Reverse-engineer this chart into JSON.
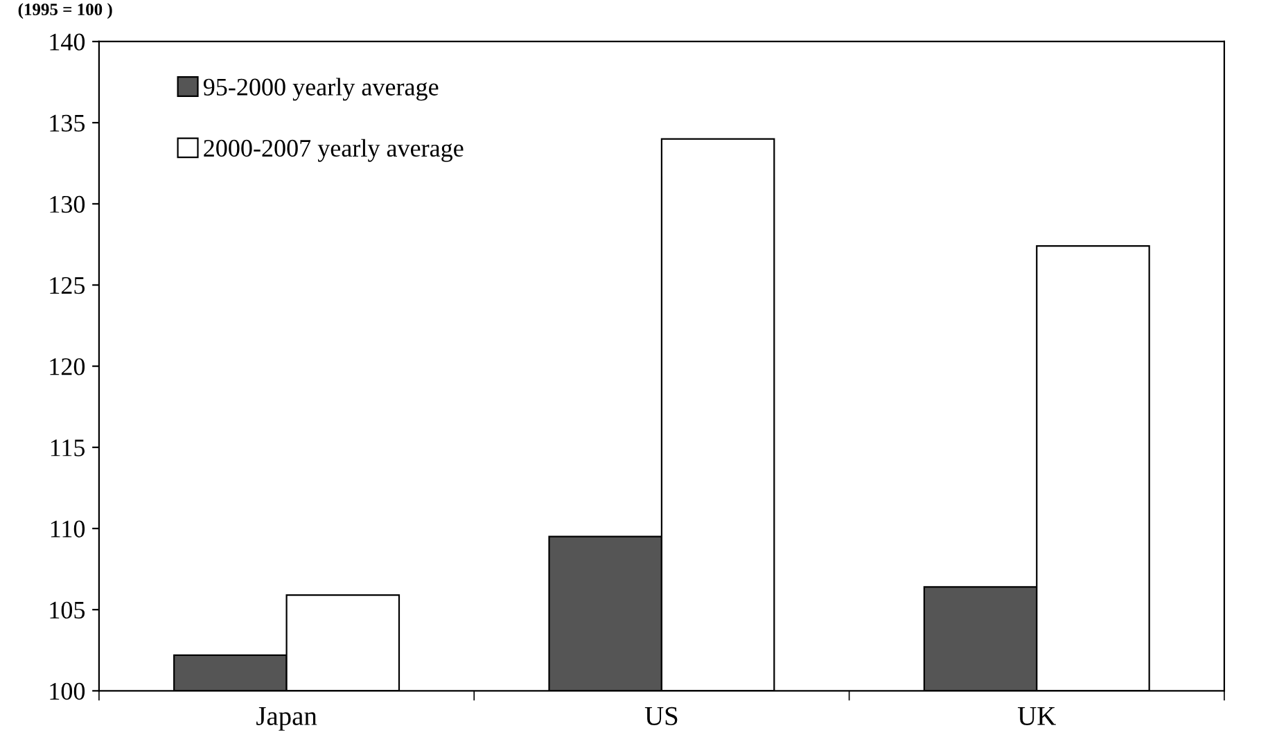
{
  "chart_data": {
    "type": "bar",
    "ylabel": "(1995 = 100 )",
    "categories": [
      "Japan",
      "US",
      "UK"
    ],
    "series": [
      {
        "name": "95-2000 yearly average",
        "color": "#555555",
        "values": [
          102.2,
          109.5,
          106.4
        ]
      },
      {
        "name": "2000-2007 yearly average",
        "color": "#ffffff",
        "values": [
          105.9,
          134,
          127.4
        ]
      }
    ],
    "ylim": [
      100,
      140
    ],
    "yticks": [
      100,
      105,
      110,
      115,
      120,
      125,
      130,
      135,
      140
    ],
    "grid": false,
    "legend": "top left"
  }
}
